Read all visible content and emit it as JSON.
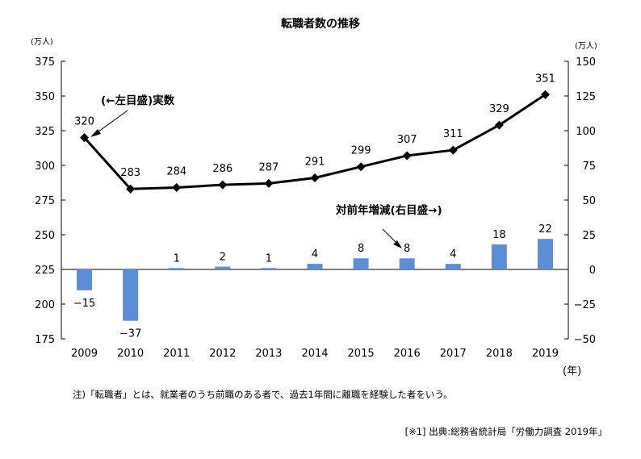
{
  "chart_data": {
    "type": "bar+line",
    "title": "転職者数の推移",
    "categories": [
      "2009",
      "2010",
      "2011",
      "2012",
      "2013",
      "2014",
      "2015",
      "2016",
      "2017",
      "2018",
      "2019"
    ],
    "x_unit": "(年)",
    "series": [
      {
        "type": "line",
        "axis": "left",
        "values": [
          320,
          283,
          284,
          286,
          287,
          291,
          299,
          307,
          311,
          329,
          351
        ]
      },
      {
        "type": "bar",
        "axis": "right",
        "values": [
          -15,
          -37,
          1,
          2,
          1,
          4,
          8,
          8,
          4,
          18,
          22
        ]
      }
    ],
    "y_left": {
      "unit": "(万人)",
      "ylim": [
        175,
        375
      ],
      "ticks": [
        375,
        350,
        325,
        300,
        275,
        250,
        225,
        200,
        175
      ]
    },
    "y_right": {
      "unit": "(万人)",
      "ylim": [
        -50,
        150
      ],
      "ticks": [
        150,
        125,
        100,
        75,
        50,
        25,
        0,
        -25,
        -50
      ]
    },
    "annotations": {
      "line": "(←左目盛)実数",
      "bar": "対前年増減(右目盛→)"
    },
    "colors": {
      "bar": "#5b8ed6",
      "line": "#000000"
    },
    "grid": false
  },
  "notes": {
    "footnote": "注)「転職者」とは、就業者のうち前職のある者で、過去1年間に離職を経験した者をいう。",
    "source": "[※1] 出典:総務省統計局「労働力調査 2019年」"
  }
}
